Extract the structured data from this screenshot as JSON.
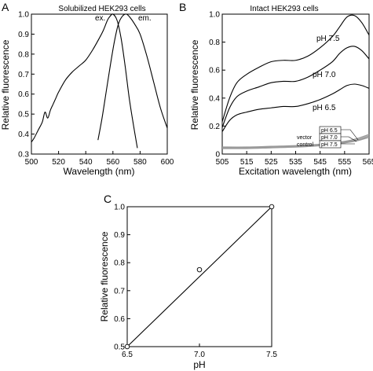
{
  "chart_data": [
    {
      "panel": "A",
      "type": "line",
      "title": "Solubilized HEK293 cells",
      "xlabel": "Wavelength (nm)",
      "ylabel": "Relative fluorescence",
      "xlim": [
        500,
        600
      ],
      "ylim": [
        0.3,
        1.0
      ],
      "xticks": [
        500,
        520,
        540,
        560,
        580,
        600
      ],
      "yticks": [
        0.3,
        0.4,
        0.5,
        0.6,
        0.7,
        0.8,
        0.9,
        1.0
      ],
      "grid": false,
      "series": [
        {
          "name": "ex.",
          "x": [
            500,
            502,
            505,
            508,
            510,
            512,
            514,
            516,
            518,
            520,
            525,
            530,
            535,
            540,
            545,
            550,
            553,
            556,
            558,
            560,
            563,
            566,
            569,
            572,
            575,
            578
          ],
          "y": [
            0.36,
            0.38,
            0.42,
            0.46,
            0.51,
            0.48,
            0.52,
            0.55,
            0.58,
            0.61,
            0.67,
            0.71,
            0.74,
            0.77,
            0.82,
            0.88,
            0.92,
            0.97,
            0.99,
            1.0,
            0.97,
            0.88,
            0.74,
            0.58,
            0.45,
            0.33
          ]
        },
        {
          "name": "em.",
          "x": [
            549,
            552,
            555,
            558,
            561,
            564,
            567,
            570,
            573,
            576,
            580,
            585,
            590,
            595,
            600
          ],
          "y": [
            0.37,
            0.48,
            0.61,
            0.74,
            0.86,
            0.95,
            0.99,
            1.0,
            0.98,
            0.95,
            0.9,
            0.79,
            0.66,
            0.53,
            0.43
          ]
        }
      ]
    },
    {
      "panel": "B",
      "type": "line",
      "title": "Intact HEK293 cells",
      "xlabel": "Excitation wavelength (nm)",
      "ylabel": "Relative fluorescence",
      "xlim": [
        505,
        565
      ],
      "ylim": [
        0,
        1.0
      ],
      "xticks": [
        505,
        515,
        525,
        535,
        545,
        555,
        565
      ],
      "yticks": [
        0,
        0.2,
        0.4,
        0.6,
        0.8,
        1.0
      ],
      "grid": false,
      "series": [
        {
          "name": "pH 7.5",
          "x": [
            505,
            508,
            511,
            515,
            520,
            525,
            530,
            535,
            540,
            545,
            550,
            553,
            556,
            559,
            562,
            565
          ],
          "y": [
            0.23,
            0.4,
            0.51,
            0.57,
            0.62,
            0.66,
            0.67,
            0.67,
            0.7,
            0.76,
            0.84,
            0.91,
            0.98,
            0.99,
            0.94,
            0.85
          ]
        },
        {
          "name": "pH 7.0",
          "x": [
            505,
            508,
            511,
            515,
            520,
            525,
            530,
            535,
            540,
            545,
            550,
            553,
            556,
            559,
            562,
            565
          ],
          "y": [
            0.19,
            0.33,
            0.41,
            0.45,
            0.48,
            0.51,
            0.52,
            0.52,
            0.55,
            0.6,
            0.66,
            0.72,
            0.76,
            0.77,
            0.74,
            0.68
          ]
        },
        {
          "name": "pH 6.5",
          "x": [
            505,
            508,
            511,
            515,
            520,
            525,
            530,
            535,
            540,
            545,
            550,
            553,
            556,
            559,
            562,
            565
          ],
          "y": [
            0.16,
            0.24,
            0.28,
            0.3,
            0.32,
            0.33,
            0.34,
            0.34,
            0.36,
            0.39,
            0.43,
            0.46,
            0.49,
            0.5,
            0.49,
            0.47
          ]
        },
        {
          "name": "vector control pH 6.5",
          "x": [
            505,
            515,
            525,
            535,
            545,
            555,
            560,
            565
          ],
          "y": [
            0.05,
            0.05,
            0.055,
            0.06,
            0.07,
            0.09,
            0.11,
            0.14
          ]
        },
        {
          "name": "vector control pH 7.0",
          "x": [
            505,
            515,
            525,
            535,
            545,
            555,
            560,
            565
          ],
          "y": [
            0.045,
            0.045,
            0.05,
            0.055,
            0.065,
            0.085,
            0.1,
            0.13
          ]
        },
        {
          "name": "vector control pH 7.5",
          "x": [
            505,
            515,
            525,
            535,
            545,
            555,
            560,
            565
          ],
          "y": [
            0.04,
            0.04,
            0.045,
            0.05,
            0.06,
            0.08,
            0.095,
            0.12
          ]
        }
      ],
      "annotations": {
        "vector_label": "vector",
        "control_label": "control",
        "boxed_labels": [
          "pH 6.5",
          "pH 7.0",
          "pH 7.5"
        ]
      }
    },
    {
      "panel": "C",
      "type": "scatter",
      "xlabel": "pH",
      "ylabel": "Relative fluorescence",
      "xlim": [
        6.5,
        7.5
      ],
      "ylim": [
        0.5,
        1.0
      ],
      "xticks": [
        "6.5",
        "7.0",
        "7.5"
      ],
      "yticks": [
        "0.5",
        "0.6",
        "0.7",
        "0.8",
        "0.9",
        "1.0"
      ],
      "grid": false,
      "points": {
        "x": [
          6.5,
          7.0,
          7.5
        ],
        "y": [
          0.5,
          0.775,
          1.0
        ]
      },
      "fit_line": {
        "x": [
          6.5,
          7.5
        ],
        "y": [
          0.5,
          1.0
        ]
      }
    }
  ]
}
